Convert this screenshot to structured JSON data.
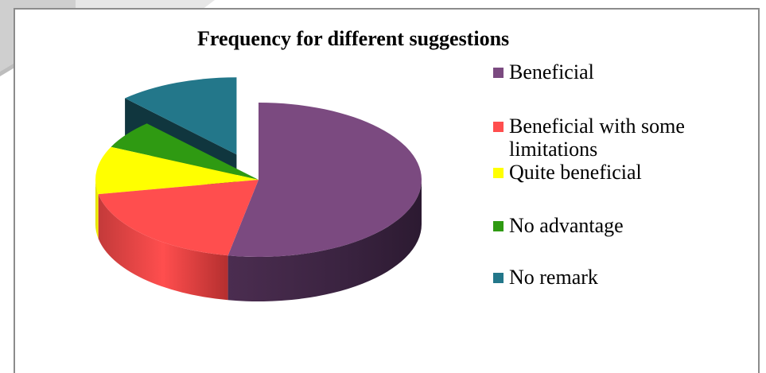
{
  "chart_data": {
    "type": "pie",
    "title": "Frequency for different suggestions",
    "categories": [
      "Beneficial",
      "Beneficial with some limitations",
      "Quite beneficial",
      "No advantage",
      "No remark"
    ],
    "values": [
      53,
      19,
      10,
      6,
      12
    ],
    "colors": [
      "#7b4a80",
      "#ff4e4e",
      "#ffff00",
      "#2f9a12",
      "#23778a"
    ],
    "exploded": [
      false,
      false,
      false,
      false,
      true
    ],
    "legend": "right"
  }
}
